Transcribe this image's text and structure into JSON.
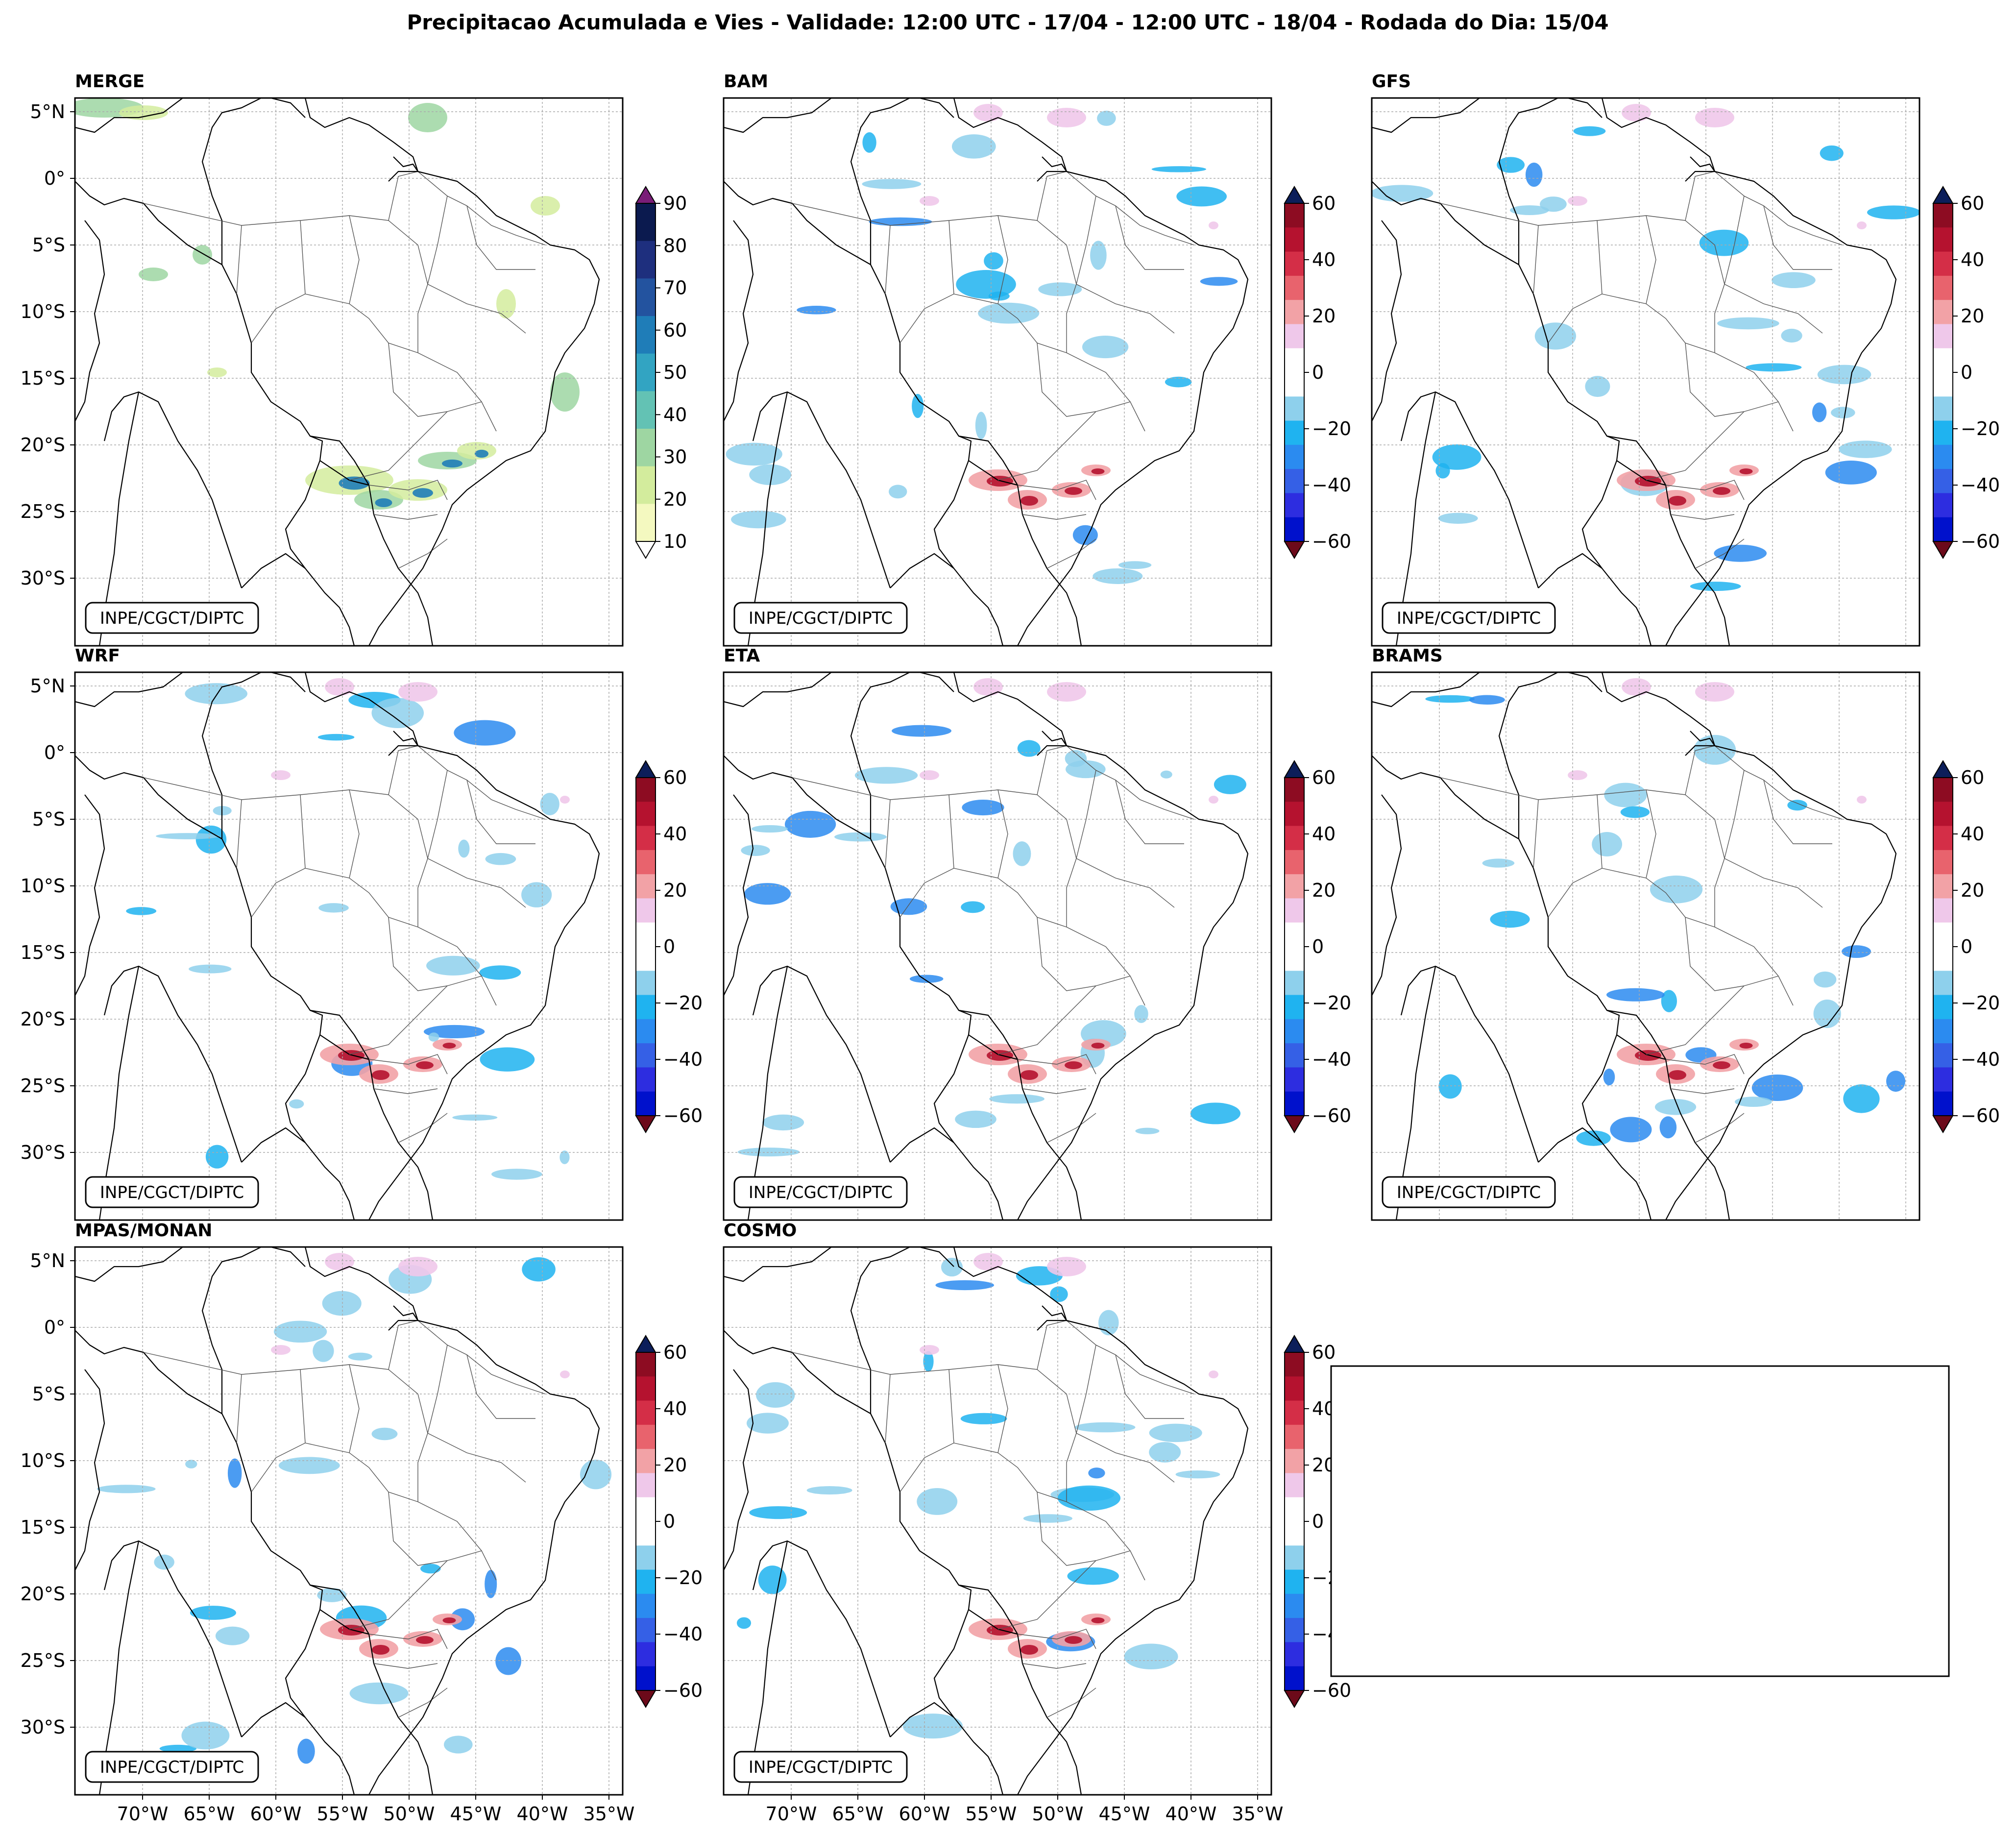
{
  "figure": {
    "title": "Precipitacao Acumulada e Vies - Validade: 12:00 UTC - 17/04 - 12:00 UTC - 18/04 - Rodada do Dia: 15/04"
  },
  "panels": [
    {
      "title": "MERGE",
      "kind": "precip",
      "credit": "INPE/CGCT/DIPTC"
    },
    {
      "title": "BAM",
      "kind": "bias",
      "credit": "INPE/CGCT/DIPTC"
    },
    {
      "title": "GFS",
      "kind": "bias",
      "credit": "INPE/CGCT/DIPTC"
    },
    {
      "title": "WRF",
      "kind": "bias",
      "credit": "INPE/CGCT/DIPTC"
    },
    {
      "title": "ETA",
      "kind": "bias",
      "credit": "INPE/CGCT/DIPTC"
    },
    {
      "title": "BRAMS",
      "kind": "bias",
      "credit": "INPE/CGCT/DIPTC"
    },
    {
      "title": "MPAS/MONAN",
      "kind": "bias",
      "credit": "INPE/CGCT/DIPTC"
    },
    {
      "title": "COSMO",
      "kind": "bias",
      "credit": "INPE/CGCT/DIPTC"
    }
  ],
  "axes": {
    "lat_labels": [
      "5°N",
      "0°",
      "5°S",
      "10°S",
      "15°S",
      "20°S",
      "25°S",
      "30°S"
    ],
    "lon_labels": [
      "70°W",
      "65°W",
      "60°W",
      "55°W",
      "50°W",
      "45°W",
      "40°W",
      "35°W"
    ]
  },
  "colorbars": {
    "precip": {
      "ticks": [
        "90",
        "80",
        "70",
        "60",
        "50",
        "40",
        "30",
        "20",
        "10"
      ],
      "colors": [
        "#f4f9c0",
        "#d3ec9d",
        "#9ed6a2",
        "#63c2b4",
        "#32a4c2",
        "#1f7db8",
        "#23539f",
        "#1e2f7e",
        "#0b1a4f"
      ],
      "extend_top_color": "#7a1d78"
    },
    "bias": {
      "ticks": [
        "60",
        "40",
        "20",
        "0",
        "−20",
        "−40",
        "−60"
      ],
      "colors": [
        "#8d0c22",
        "#b5122f",
        "#d42e47",
        "#e8636d",
        "#f2a2a6",
        "#efc8ea",
        "#ffffff",
        "#ffffff",
        "#8ed0ec",
        "#1fb3f0",
        "#2b8bf0",
        "#3560e6",
        "#2d2de0",
        "#0011cc"
      ],
      "extend_top_color": "#0c1e5a",
      "extend_bottom_color": "#6c0a1a"
    }
  }
}
